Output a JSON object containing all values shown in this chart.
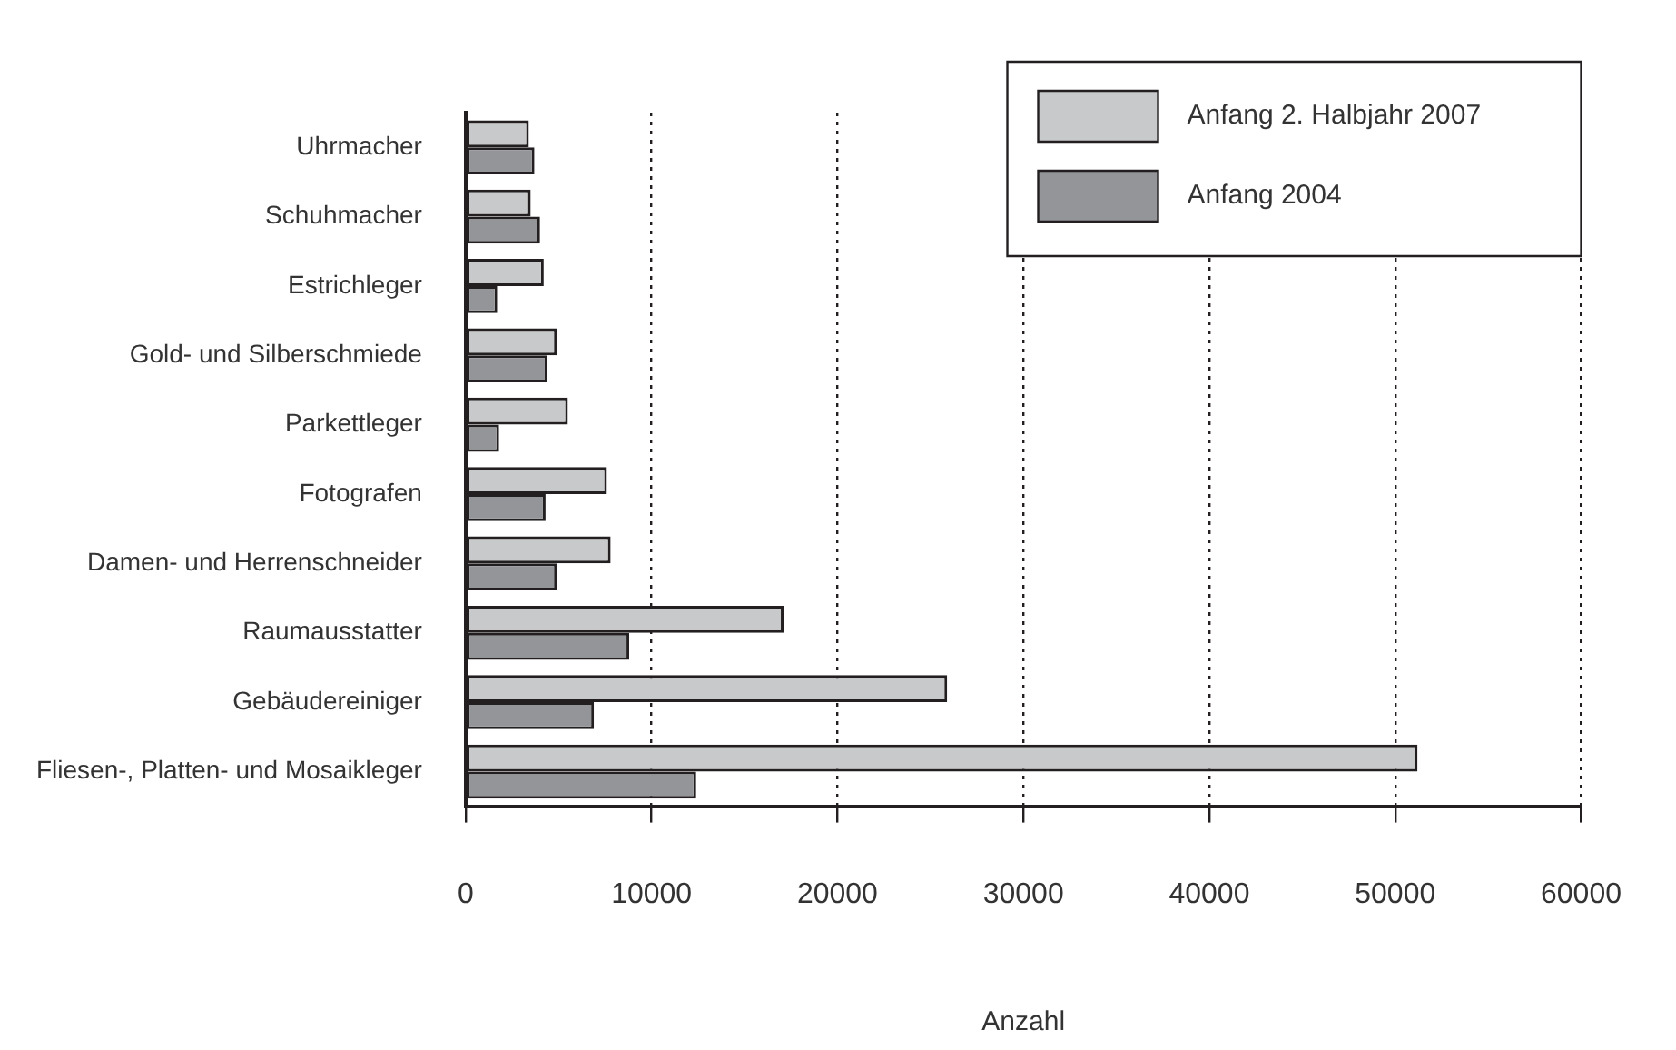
{
  "chart_data": {
    "type": "bar",
    "orientation": "horizontal",
    "xlabel": "Anzahl",
    "categories": [
      "Uhrmacher",
      "Schuhmacher",
      "Estrichleger",
      "Gold- und Silberschmiede",
      "Parkettleger",
      "Fotografen",
      "Damen- und Herrenschneider",
      "Raumausstatter",
      "Gebäudereiniger",
      "Fliesen-, Platten- und Mosaikleger"
    ],
    "series": [
      {
        "name": "Anfang 2. Halbjahr 2007",
        "color": "#c8c9cb",
        "values": [
          3400,
          3500,
          4200,
          4900,
          5500,
          7600,
          7800,
          17100,
          25900,
          51200
        ]
      },
      {
        "name": "Anfang 2004",
        "color": "#939598",
        "values": [
          3700,
          4000,
          1700,
          4400,
          1800,
          4300,
          4900,
          8800,
          6900,
          12400
        ]
      }
    ],
    "xlim": [
      0,
      60000
    ],
    "xticks": [
      0,
      10000,
      20000,
      30000,
      40000,
      50000,
      60000
    ],
    "grid": "x",
    "legend": "top right"
  }
}
